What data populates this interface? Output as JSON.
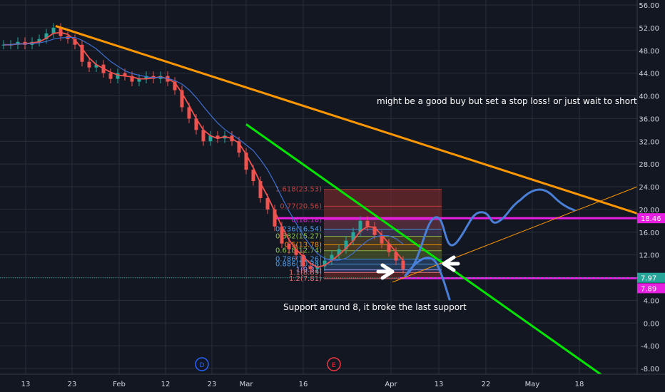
{
  "chart_data": {
    "type": "candlestick",
    "y_axis": {
      "ticks": [
        "56.00",
        "52.00",
        "48.00",
        "44.00",
        "40.00",
        "36.00",
        "32.00",
        "28.00",
        "24.00",
        "20.00",
        "16.00",
        "12.00",
        "8.00",
        "4.00",
        "0.00",
        "-4.00",
        "-8.00"
      ],
      "values": [
        56,
        52,
        48,
        44,
        40,
        36,
        32,
        28,
        24,
        20,
        16,
        12,
        8,
        4,
        0,
        -4,
        -8
      ],
      "range": [
        -9.5,
        57
      ]
    },
    "x_axis": {
      "ticks": [
        "13",
        "23",
        "Feb",
        "12",
        "23",
        "Mar",
        "16",
        "Apr",
        "13",
        "22",
        "May",
        "18"
      ]
    },
    "annotations": {
      "top_note": "might be a good buy but set a stop loss! or just wait to short it",
      "bottom_note": "Support around 8, it broke the last support"
    },
    "price_labels": [
      {
        "value": 18.46,
        "text": "18.46",
        "color": "#e91ee3"
      },
      {
        "value": 7.97,
        "text": "7.97",
        "color": "#26a69a"
      },
      {
        "value": 7.89,
        "text": "7.89",
        "color": "#e91ee3"
      }
    ],
    "fib_levels": [
      {
        "text": "1.618(23.53)",
        "value": 23.53,
        "color": "#c2413c"
      },
      {
        "text": "0.77(20.56)",
        "value": 20.56,
        "color": "#c2413c"
      },
      {
        "text": "0(18.18)",
        "value": 18.18,
        "color": "#e91ee3"
      },
      {
        "text": "0.236(16.54)",
        "value": 16.54,
        "color": "#4c9be8"
      },
      {
        "text": "0.382(15.27)",
        "value": 15.27,
        "color": "#8bc34a"
      },
      {
        "text": "0.5(13.78)",
        "value": 13.78,
        "color": "#ff9800"
      },
      {
        "text": "0.618(12.74)",
        "value": 12.74,
        "color": "#8bc34a"
      },
      {
        "text": "0.786(11.26)",
        "value": 11.26,
        "color": "#4c9be8"
      },
      {
        "text": "0.886(10.38)",
        "value": 10.38,
        "color": "#4c9be8"
      },
      {
        "text": "1(9.37)",
        "value": 9.37,
        "color": "#9c9cff"
      },
      {
        "text": "1.1(8.89)",
        "value": 8.89,
        "color": "#e57373"
      },
      {
        "text": "1.2(7.81)",
        "value": 7.81,
        "color": "#e57373"
      }
    ],
    "event_markers": [
      {
        "text": "D",
        "color": "#2962ff"
      },
      {
        "text": "E",
        "color": "#f23645"
      }
    ],
    "colors": {
      "background": "#131722",
      "grid": "#2a2e39",
      "trendline_main": "#ff9800",
      "trendline_green": "#00e600",
      "support_line": "#e91ee3",
      "projection": "#4a7fd8",
      "candle_up": "#26a69a",
      "candle_down": "#ef5350",
      "ma_red": "#ef5350",
      "ma_blue": "#3f6fd0"
    },
    "candles_close": [
      49,
      49,
      49.5,
      49,
      49.5,
      50,
      51,
      52,
      50.5,
      50,
      49,
      46,
      45,
      45.5,
      44,
      43,
      44,
      43.5,
      42.5,
      43,
      43.5,
      43,
      43.5,
      42.5,
      41,
      38,
      36,
      34,
      32,
      33,
      32.5,
      33,
      32,
      30,
      27,
      25,
      22,
      20,
      17,
      14,
      13,
      12,
      10,
      9.5,
      10,
      11,
      12,
      13,
      14.5,
      16,
      18,
      17,
      15.5,
      14,
      12.5,
      11,
      9.5
    ]
  }
}
